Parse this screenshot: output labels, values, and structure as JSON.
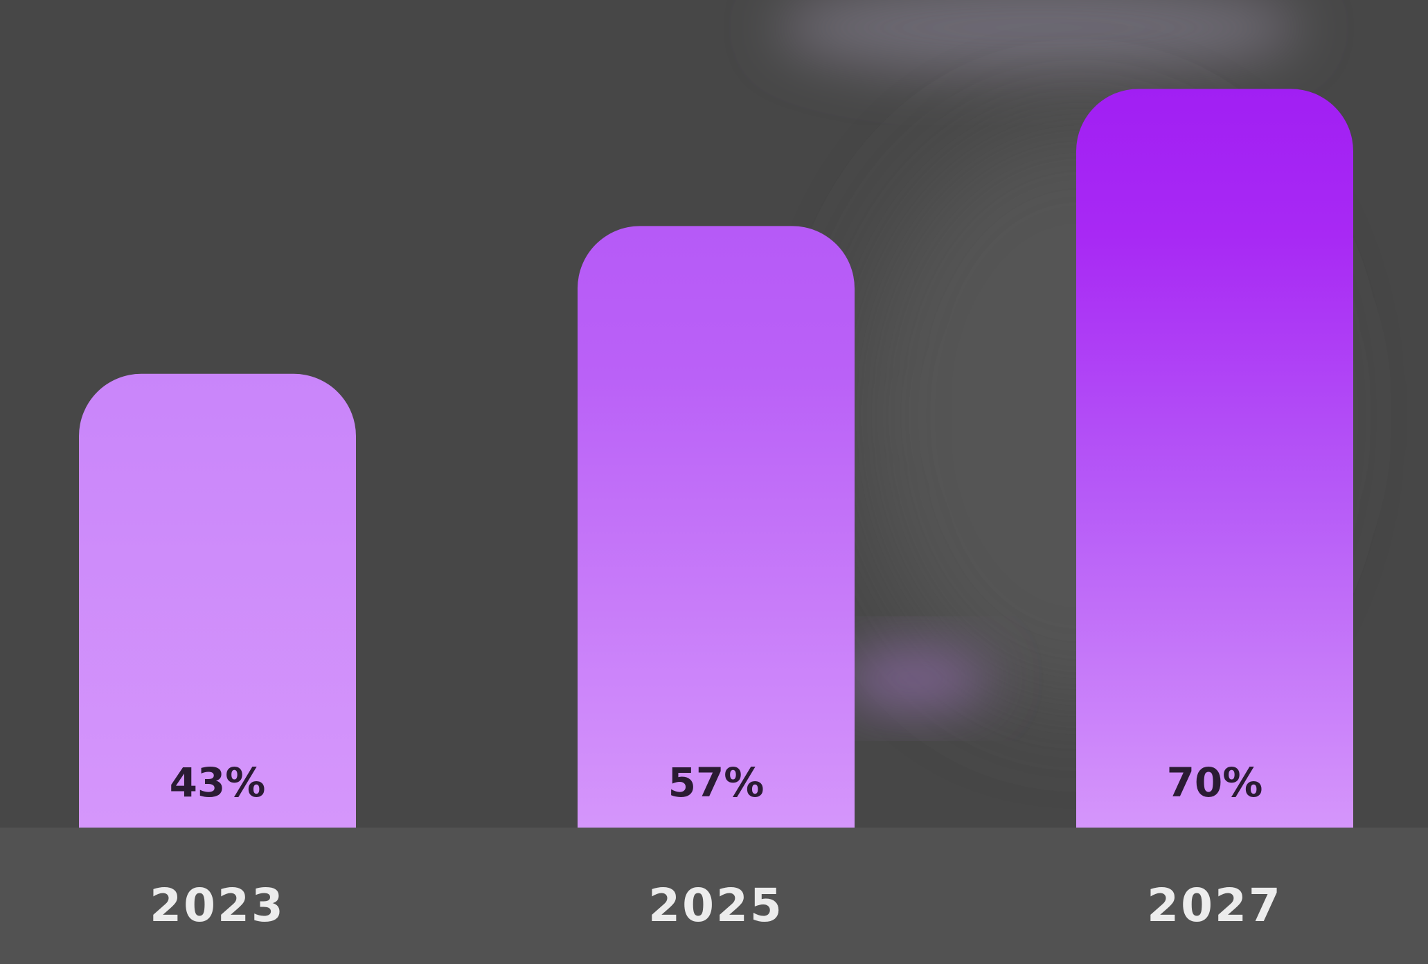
{
  "chart_data": {
    "type": "bar",
    "categories": [
      "2023",
      "2025",
      "2027"
    ],
    "values": [
      43,
      57,
      70
    ],
    "value_labels": [
      "43%",
      "57%",
      "70%"
    ],
    "title": "",
    "xlabel": "",
    "ylabel": "",
    "ylim": [
      0,
      73.5
    ],
    "grid": false,
    "legend": "none",
    "colors": {
      "background": "#474747",
      "bar_light": "#d596fb",
      "bar_mid": "#b65af7",
      "bar_dark": "#a11ff3",
      "value_label": "#2a1b33",
      "tick_label": "#ececec"
    }
  }
}
